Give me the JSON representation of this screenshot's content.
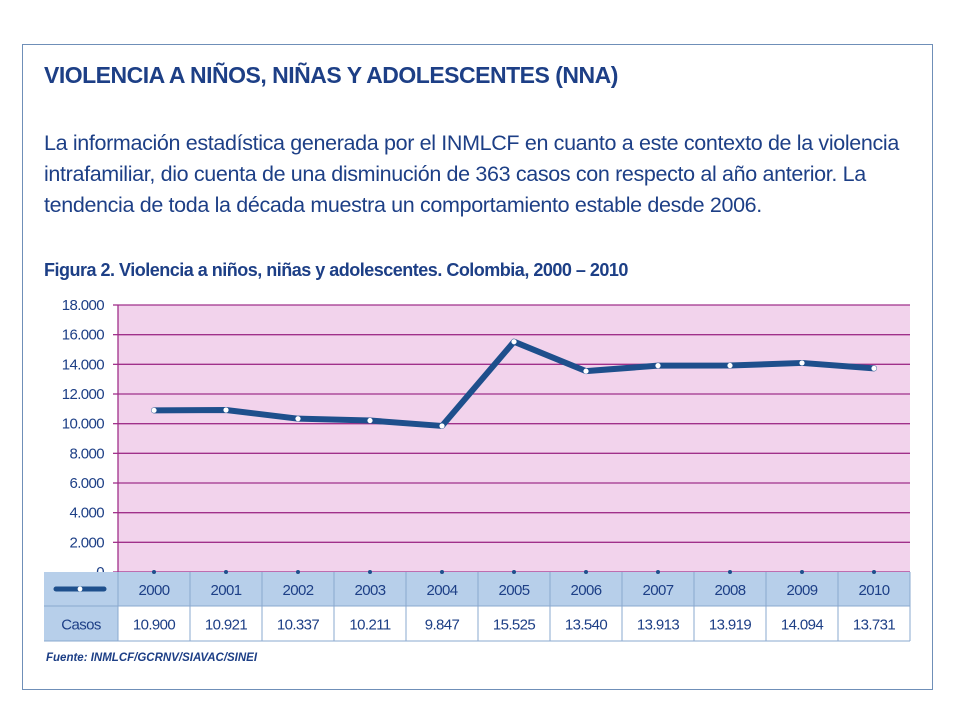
{
  "header": {
    "title": "VIOLENCIA A NIÑOS, NIÑAS Y ADOLESCENTES (NNA)",
    "paragraph": "La información estadística generada por el INMLCF en cuanto a este contexto de la violencia intrafamiliar, dio cuenta de una disminución de 363 casos con respecto al año anterior. La tendencia de toda la década muestra un comportamiento estable desde 2006."
  },
  "figure": {
    "caption": "Figura 2. Violencia a niños, niñas y adolescentes. Colombia, 2000 – 2010",
    "source": "Fuente: INMLCF/GCRNV/SIAVAC/SINEI"
  },
  "colors": {
    "plot_background": "#f2d3ec",
    "gridline": "#a0308a",
    "line": "#1e4f8c",
    "marker": "#ffffff",
    "table_header": "#b7cfea",
    "text": "#1d3f86"
  },
  "chart_data": {
    "type": "line",
    "title": "Figura 2. Violencia a niños, niñas y adolescentes. Colombia, 2000 – 2010",
    "xlabel": "",
    "ylabel": "",
    "ylim": [
      0,
      18000
    ],
    "yticks": [
      0,
      2000,
      4000,
      6000,
      8000,
      10000,
      12000,
      14000,
      16000,
      18000
    ],
    "ytick_labels": [
      "0",
      "2.000",
      "4.000",
      "6.000",
      "8.000",
      "10.000",
      "12.000",
      "14.000",
      "16.000",
      "18.000"
    ],
    "categories": [
      "2000",
      "2001",
      "2002",
      "2003",
      "2004",
      "2005",
      "2006",
      "2007",
      "2008",
      "2009",
      "2010"
    ],
    "grid": true,
    "legend": "table-left",
    "series": [
      {
        "name": "Casos",
        "values": [
          10900,
          10921,
          10337,
          10211,
          9847,
          15525,
          13540,
          13913,
          13919,
          14094,
          13731
        ],
        "value_labels": [
          "10.900",
          "10.921",
          "10.337",
          "10.211",
          "9.847",
          "15.525",
          "13.540",
          "13.913",
          "13.919",
          "14.094",
          "13.731"
        ]
      }
    ]
  }
}
